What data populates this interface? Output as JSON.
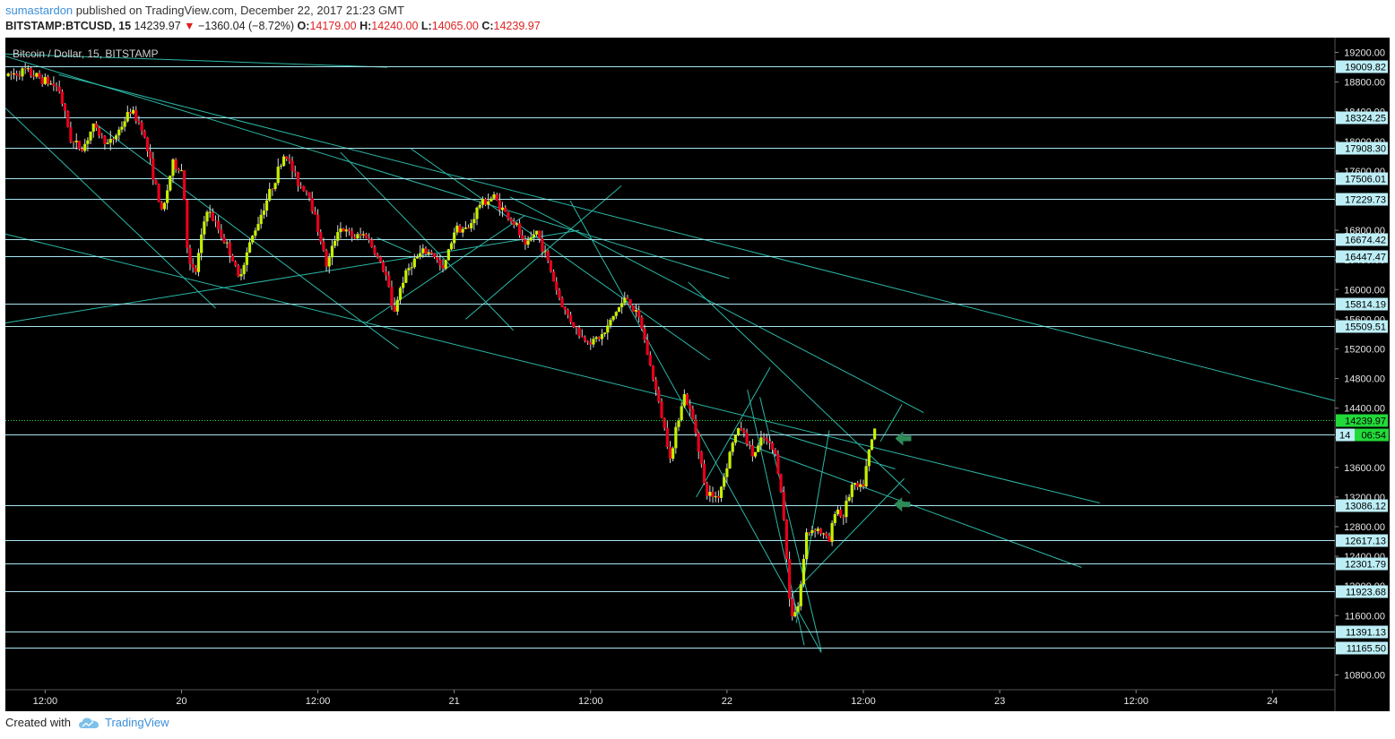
{
  "header": {
    "author": "sumastardon",
    "published_text": "published on TradingView.com, December 22, 2017 21:23 GMT",
    "symbol": "BITSTAMP:BTCUSD, 15",
    "last": "14239.97",
    "change": "−1360.04 (−8.72%)",
    "open_label": "O:",
    "open": "14179.00",
    "high_label": "H:",
    "high": "14240.00",
    "low_label": "L:",
    "low": "14065.00",
    "close_label": "C:",
    "close": "14239.97"
  },
  "footer": {
    "created_with": "Created with",
    "brand": "TradingView"
  },
  "colors": {
    "background": "#000000",
    "up_candle": "#c6f000",
    "down_candle": "#e8001c",
    "wick": "#d8d8d8",
    "level_line": "#a8e6f2",
    "trend_line": "#2bb7a6",
    "label_bg": "#bdeef6",
    "price_line": "#22d93a",
    "arrow": "#2e8b57"
  },
  "chart_data": {
    "type": "candlestick",
    "title": "Bitcoin / Dollar, 15, BITSTAMP",
    "ylim": [
      10600,
      19400
    ],
    "y_ticks": [
      "19200.00",
      "18800.00",
      "18400.00",
      "18000.00",
      "17600.00",
      "17200.00",
      "16800.00",
      "16400.00",
      "16000.00",
      "15600.00",
      "15200.00",
      "14800.00",
      "14400.00",
      "14000.00",
      "13600.00",
      "13200.00",
      "12800.00",
      "12400.00",
      "12000.00",
      "11600.00",
      "11200.00",
      "10800.00"
    ],
    "x_ticks": [
      "12:00",
      "20",
      "12:00",
      "21",
      "12:00",
      "22",
      "12:00",
      "23",
      "12:00",
      "24"
    ],
    "x_tick_hours": [
      12,
      24,
      36,
      48,
      60,
      72,
      84,
      96,
      108,
      120
    ],
    "x_range_hours": [
      8.5,
      125.5
    ],
    "levels": [
      "19009.82",
      "18324.25",
      "17908.30",
      "17506.01",
      "17229.73",
      "16674.42",
      "16447.47",
      "15814.19",
      "15509.51",
      "13086.12",
      "12617.13",
      "12301.79",
      "11923.68",
      "11391.13",
      "11165.50"
    ],
    "current_price": "14239.97",
    "countdown_level": 14040,
    "countdown_label": "14",
    "countdown": "06:54",
    "anchors": [
      [
        8.5,
        18880
      ],
      [
        10.2,
        18950
      ],
      [
        11.6,
        18850
      ],
      [
        13.2,
        18720
      ],
      [
        14.3,
        18000
      ],
      [
        15.3,
        17900
      ],
      [
        16.2,
        18200
      ],
      [
        17.6,
        17950
      ],
      [
        18.5,
        18150
      ],
      [
        19.5,
        18420
      ],
      [
        20.5,
        18200
      ],
      [
        21.5,
        17550
      ],
      [
        22.3,
        17000
      ],
      [
        23.2,
        17700
      ],
      [
        24.1,
        17600
      ],
      [
        24.6,
        16350
      ],
      [
        25.2,
        16200
      ],
      [
        26.2,
        17100
      ],
      [
        27.3,
        16800
      ],
      [
        28.3,
        16500
      ],
      [
        29,
        16150
      ],
      [
        30.2,
        16700
      ],
      [
        31.2,
        17100
      ],
      [
        32,
        17400
      ],
      [
        33.1,
        17850
      ],
      [
        34.2,
        17450
      ],
      [
        35.2,
        17300
      ],
      [
        36.2,
        16700
      ],
      [
        36.8,
        16300
      ],
      [
        37.8,
        16850
      ],
      [
        39.2,
        16700
      ],
      [
        40.2,
        16750
      ],
      [
        41.2,
        16450
      ],
      [
        42.1,
        16150
      ],
      [
        42.6,
        15650
      ],
      [
        43.4,
        16100
      ],
      [
        44.2,
        16350
      ],
      [
        45.2,
        16500
      ],
      [
        46.1,
        16500
      ],
      [
        47,
        16250
      ],
      [
        48.1,
        16850
      ],
      [
        49.2,
        16800
      ],
      [
        50.2,
        17150
      ],
      [
        51.5,
        17250
      ],
      [
        52.4,
        17050
      ],
      [
        53.5,
        16850
      ],
      [
        54.2,
        16550
      ],
      [
        55.2,
        16800
      ],
      [
        56.2,
        16400
      ],
      [
        57.1,
        15950
      ],
      [
        57.6,
        15750
      ],
      [
        58.2,
        15600
      ],
      [
        59.2,
        15350
      ],
      [
        60.2,
        15300
      ],
      [
        61.2,
        15400
      ],
      [
        62.2,
        15700
      ],
      [
        63.2,
        15900
      ],
      [
        64.4,
        15550
      ],
      [
        65.2,
        15000
      ],
      [
        66.1,
        14400
      ],
      [
        67.1,
        13700
      ],
      [
        67.6,
        14200
      ],
      [
        68.2,
        14600
      ],
      [
        69.1,
        14200
      ],
      [
        69.6,
        13800
      ],
      [
        70.1,
        13250
      ],
      [
        71.2,
        13200
      ],
      [
        71.7,
        13450
      ],
      [
        72.5,
        13950
      ],
      [
        73.2,
        14150
      ],
      [
        74.3,
        13750
      ],
      [
        75.2,
        14000
      ],
      [
        76.2,
        13800
      ],
      [
        76.7,
        13400
      ],
      [
        77.1,
        12700
      ],
      [
        77.6,
        11600
      ],
      [
        78.3,
        11750
      ],
      [
        79,
        12700
      ],
      [
        79.8,
        12800
      ],
      [
        81,
        12600
      ],
      [
        81.6,
        13100
      ],
      [
        82.1,
        12900
      ],
      [
        83,
        13350
      ],
      [
        83.9,
        13300
      ],
      [
        84.5,
        13800
      ],
      [
        85.2,
        14239.97
      ]
    ],
    "trend_lines": [
      [
        [
          8.5,
          19180
        ],
        [
          42.1,
          19000
        ]
      ],
      [
        [
          8.5,
          19150
        ],
        [
          72.2,
          16150
        ]
      ],
      [
        [
          13.2,
          18900
        ],
        [
          125.5,
          14500
        ]
      ],
      [
        [
          8.5,
          18450
        ],
        [
          27,
          15750
        ]
      ],
      [
        [
          8.5,
          16750
        ],
        [
          104.8,
          13120
        ]
      ],
      [
        [
          8.5,
          15550
        ],
        [
          59,
          16800
        ]
      ],
      [
        [
          16.5,
          18230
        ],
        [
          43.1,
          15200
        ]
      ],
      [
        [
          38,
          17850
        ],
        [
          53.2,
          15450
        ]
      ],
      [
        [
          44.2,
          17900
        ],
        [
          70.5,
          15050
        ]
      ],
      [
        [
          49,
          15600
        ],
        [
          62.7,
          17400
        ]
      ],
      [
        [
          40.2,
          15550
        ],
        [
          54.2,
          17000
        ]
      ],
      [
        [
          52.9,
          17250
        ],
        [
          89.3,
          14340
        ]
      ],
      [
        [
          41.2,
          16700
        ],
        [
          44.2,
          16500
        ]
      ],
      [
        [
          58.2,
          17200
        ],
        [
          80.3,
          11100
        ]
      ],
      [
        [
          68.6,
          16100
        ],
        [
          88.1,
          13250
        ]
      ],
      [
        [
          74.9,
          14550
        ],
        [
          80.3,
          11120
        ]
      ],
      [
        [
          69.3,
          13200
        ],
        [
          75.8,
          14950
        ]
      ],
      [
        [
          73.8,
          14650
        ],
        [
          78.8,
          11200
        ]
      ],
      [
        [
          78.1,
          11500
        ],
        [
          81,
          14100
        ]
      ],
      [
        [
          77.8,
          11900
        ],
        [
          87.6,
          13450
        ]
      ],
      [
        [
          75.8,
          14100
        ],
        [
          86.8,
          13580
        ]
      ],
      [
        [
          85.5,
          13950
        ],
        [
          87.4,
          14450
        ]
      ],
      [
        [
          72.2,
          14000
        ],
        [
          103.2,
          12250
        ]
      ]
    ],
    "arrows": [
      {
        "hour": 86.8,
        "price": 13990
      },
      {
        "hour": 86.7,
        "price": 13100
      }
    ]
  }
}
